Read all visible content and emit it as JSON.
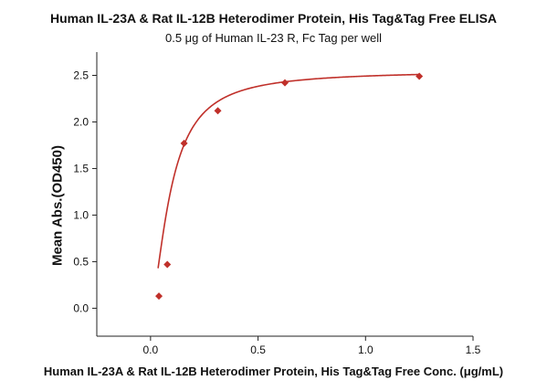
{
  "chart_data": {
    "type": "scatter",
    "title": "Human IL-23A & Rat IL-12B Heterodimer Protein, His Tag&Tag Free ELISA",
    "subtitle": "0.5 μg of Human IL-23 R, Fc Tag per well",
    "xlabel": "Human IL-23A & Rat IL-12B Heterodimer Protein, His Tag&Tag Free Conc. (μg/mL)",
    "ylabel": "Mean Abs.(OD450)",
    "xlim": [
      -0.25,
      1.5
    ],
    "ylim": [
      -0.3,
      2.75
    ],
    "xticks": [
      0.0,
      0.5,
      1.0,
      1.5
    ],
    "xtick_labels": [
      "0.0",
      "0.5",
      "1.0",
      "1.5"
    ],
    "yticks": [
      0.0,
      0.5,
      1.0,
      1.5,
      2.0,
      2.5
    ],
    "ytick_labels": [
      "0.0",
      "0.5",
      "1.0",
      "1.5",
      "2.0",
      "2.5"
    ],
    "grid": false,
    "legend": "none",
    "series": [
      {
        "x": [
          0.039,
          0.078,
          0.156,
          0.313,
          0.625,
          1.25
        ],
        "y": [
          0.13,
          0.47,
          1.77,
          2.12,
          2.42,
          2.49
        ],
        "marker": "diamond",
        "color": "#c0302a"
      }
    ],
    "fit_curve": {
      "type": "4PL",
      "bottom": 0.0,
      "top": 2.55,
      "ec50": 0.095,
      "hill": 1.6,
      "x_start": 0.035,
      "x_end": 1.25,
      "color": "#c0302a"
    }
  }
}
